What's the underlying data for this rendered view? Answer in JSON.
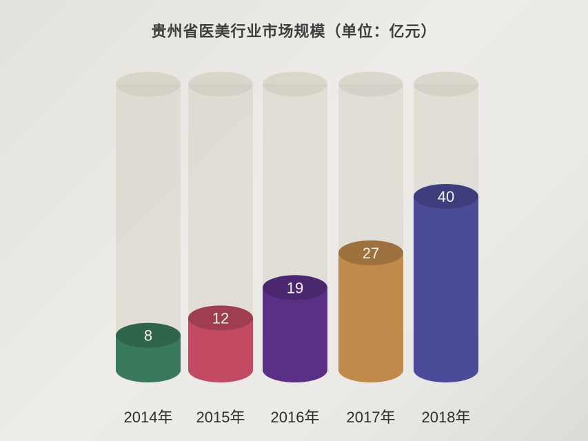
{
  "chart_data": {
    "type": "bar",
    "title": "贵州省医美行业市场规模（单位：亿元）",
    "categories": [
      "2014年",
      "2015年",
      "2016年",
      "2017年",
      "2018年"
    ],
    "values": [
      8,
      12,
      19,
      27,
      40
    ],
    "value_labels": [
      "8",
      "12",
      "19",
      "27",
      "40"
    ],
    "xlabel": "",
    "ylabel": "",
    "colors": [
      "#3a7a5c",
      "#c24a63",
      "#5a2f86",
      "#c08a4b",
      "#4c4b99"
    ],
    "background_cylinder_color": "#ccc6b8",
    "grid": false,
    "legend": "none"
  }
}
